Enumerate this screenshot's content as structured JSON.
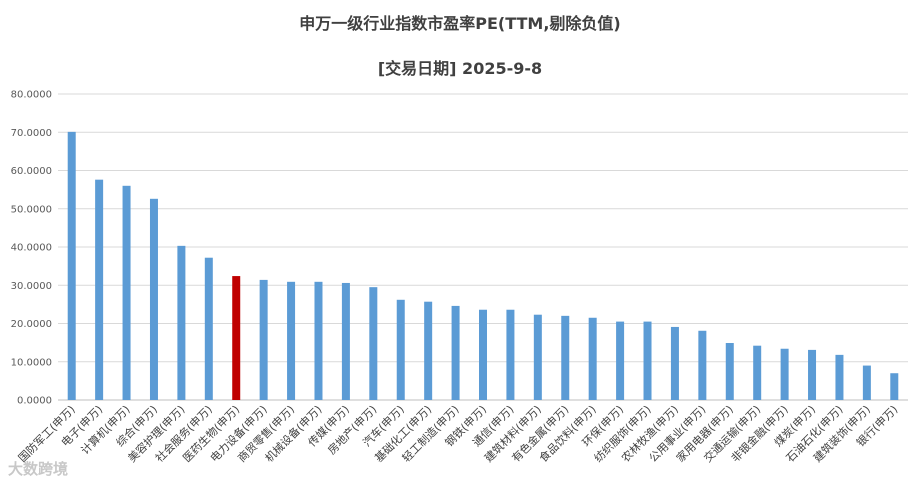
{
  "chart_data": {
    "type": "bar",
    "title": "申万一级行业指数市盈率PE(TTM,剔除负值)",
    "subtitle": "[交易日期] 2025-9-8",
    "xlabel": "",
    "ylabel": "",
    "ylim": [
      0,
      80
    ],
    "yticks": [
      "0.0000",
      "10.0000",
      "20.0000",
      "30.0000",
      "40.0000",
      "50.0000",
      "60.0000",
      "70.0000",
      "80.0000"
    ],
    "grid": true,
    "categories": [
      "国防军工(申万)",
      "电子(申万)",
      "计算机(申万)",
      "综合(申万)",
      "美容护理(申万)",
      "社会服务(申万)",
      "医药生物(申万)",
      "电力设备(申万)",
      "商贸零售(申万)",
      "机械设备(申万)",
      "传媒(申万)",
      "房地产(申万)",
      "汽车(申万)",
      "基础化工(申万)",
      "轻工制造(申万)",
      "钢铁(申万)",
      "通信(申万)",
      "建筑材料(申万)",
      "有色金属(申万)",
      "食品饮料(申万)",
      "环保(申万)",
      "纺织服饰(申万)",
      "农林牧渔(申万)",
      "公用事业(申万)",
      "家用电器(申万)",
      "交通运输(申万)",
      "非银金融(申万)",
      "煤炭(申万)",
      "石油石化(申万)",
      "建筑装饰(申万)",
      "银行(申万)"
    ],
    "values": [
      70.1,
      57.6,
      56.0,
      52.6,
      40.3,
      37.2,
      32.4,
      31.4,
      30.9,
      30.9,
      30.6,
      29.5,
      26.2,
      25.7,
      24.6,
      23.6,
      23.6,
      22.3,
      22.0,
      21.5,
      20.5,
      20.5,
      19.1,
      18.1,
      14.9,
      14.2,
      13.4,
      13.1,
      11.8,
      9.0,
      7.0
    ],
    "highlight_index": 6,
    "colors": {
      "bar": "#5b9bd5",
      "highlight": "#c00000",
      "grid": "#d9d9d9"
    }
  },
  "watermark": "大数跨境"
}
